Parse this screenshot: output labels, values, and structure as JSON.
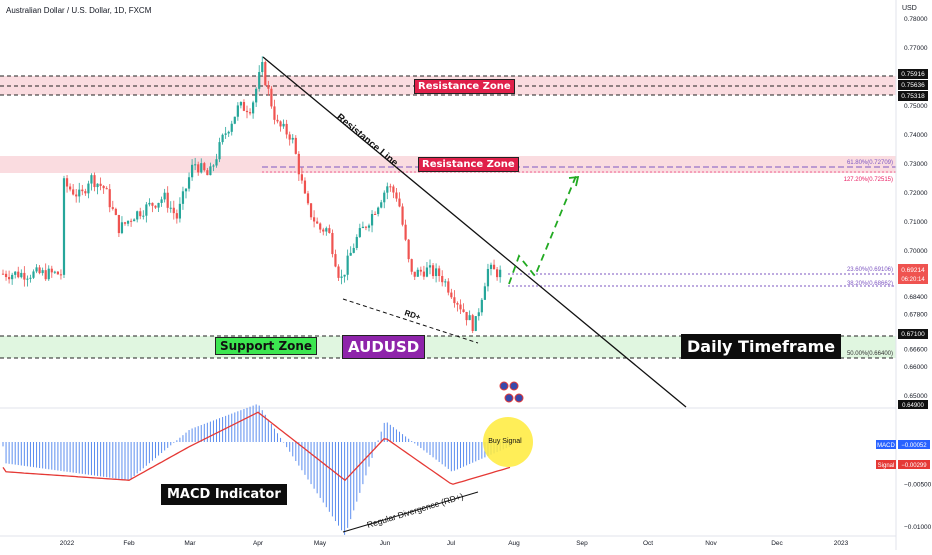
{
  "header": {
    "symbol_title": "Australian Dollar / U.S. Dollar, 1D, FXCM",
    "currency": "USD"
  },
  "annotations": {
    "resistance_zone_top": "Resistance Zone",
    "resistance_zone_mid": "Resistance Zone",
    "resistance_line": "Resistance Line",
    "rd_plus": "RD+",
    "support_zone": "Support Zone",
    "pair": "AUDUSD",
    "timeframe": "Daily Timeframe",
    "macd_indicator": "MACD Indicator",
    "regular_divergence": "Regular Divergence (RD+)",
    "buy_signal": "Buy Signal"
  },
  "fib_labels": {
    "f618": "61.80%(0.72709)",
    "f1272": "127.20%(0.72515)",
    "f236": "23.60%(0.69106)",
    "f382": "38.20%(0.68662)",
    "f50": "50.00%(0.66400)"
  },
  "price_tags": {
    "a": "0.75916",
    "b": "0.75636",
    "c": "0.75318",
    "current": "0.69214",
    "countdown": "06:20:14",
    "support": "0.67100",
    "low": "0.64900"
  },
  "macd_tags": {
    "macd_label": "MACD",
    "macd_value": "−0.00052",
    "signal_label": "Signal",
    "signal_value": "−0.00299"
  },
  "colors": {
    "up": "#26a69a",
    "down": "#ef5350",
    "histogram": "#5b8def",
    "signal": "#e53935",
    "resistance_fill": "#f8d0d6",
    "support_fill": "#daf5da",
    "fib": "#7e57c2",
    "projection": "#22aa22"
  },
  "chart_data": [
    {
      "type": "candlestick",
      "title": "Australian Dollar / U.S. Dollar, 1D, FXCM",
      "y_axis_ticks": [
        "0.78000",
        "0.77000",
        "0.76000",
        "0.75000",
        "0.74000",
        "0.73000",
        "0.72000",
        "0.71000",
        "0.70000",
        "0.69000",
        "0.68400",
        "0.67800",
        "0.66600",
        "0.66000",
        "0.65000"
      ],
      "x_axis_ticks": [
        "2022",
        "Feb",
        "Mar",
        "Apr",
        "May",
        "Jun",
        "Jul",
        "Aug",
        "Sep",
        "Oct",
        "Nov",
        "Dec",
        "2023"
      ],
      "close_path": [
        {
          "date": "2022-01-01",
          "close": 0.7235
        },
        {
          "date": "2022-01-10",
          "close": 0.7185
        },
        {
          "date": "2022-01-14",
          "close": 0.7255
        },
        {
          "date": "2022-01-21",
          "close": 0.7215
        },
        {
          "date": "2022-01-28",
          "close": 0.7075
        },
        {
          "date": "2022-02-04",
          "close": 0.7125
        },
        {
          "date": "2022-02-11",
          "close": 0.7155
        },
        {
          "date": "2022-02-18",
          "close": 0.7185
        },
        {
          "date": "2022-02-24",
          "close": 0.7115
        },
        {
          "date": "2022-03-04",
          "close": 0.7305
        },
        {
          "date": "2022-03-11",
          "close": 0.7255
        },
        {
          "date": "2022-03-18",
          "close": 0.7395
        },
        {
          "date": "2022-03-25",
          "close": 0.7495
        },
        {
          "date": "2022-03-31",
          "close": 0.7495
        },
        {
          "date": "2022-04-05",
          "close": 0.7635
        },
        {
          "date": "2022-04-12",
          "close": 0.7435
        },
        {
          "date": "2022-04-19",
          "close": 0.7395
        },
        {
          "date": "2022-04-26",
          "close": 0.7155
        },
        {
          "date": "2022-05-02",
          "close": 0.7075
        },
        {
          "date": "2022-05-06",
          "close": 0.7075
        },
        {
          "date": "2022-05-12",
          "close": 0.6895
        },
        {
          "date": "2022-05-19",
          "close": 0.7035
        },
        {
          "date": "2022-05-26",
          "close": 0.7115
        },
        {
          "date": "2022-06-03",
          "close": 0.7225
        },
        {
          "date": "2022-06-08",
          "close": 0.7185
        },
        {
          "date": "2022-06-14",
          "close": 0.6915
        },
        {
          "date": "2022-06-21",
          "close": 0.6935
        },
        {
          "date": "2022-06-28",
          "close": 0.6915
        },
        {
          "date": "2022-07-06",
          "close": 0.6825
        },
        {
          "date": "2022-07-14",
          "close": 0.6735
        },
        {
          "date": "2022-07-20",
          "close": 0.6935
        },
        {
          "date": "2022-07-27",
          "close": 0.6921
        }
      ],
      "ylabel": "USD"
    },
    {
      "type": "bar",
      "title": "",
      "categories": [
        "2022",
        "Feb",
        "Mar",
        "Apr",
        "May",
        "Jun",
        "Jul",
        "Aug"
      ],
      "series": [
        {
          "name": "MACD",
          "values": [
            -0.0025,
            -0.0045,
            0.0015,
            0.0045,
            -0.011,
            0.0025,
            -0.0035,
            -0.00052
          ]
        },
        {
          "name": "Signal",
          "values": [
            -0.0035,
            -0.0045,
            -0.0005,
            0.0035,
            -0.0045,
            0.0005,
            -0.005,
            -0.00299
          ]
        }
      ],
      "y_axis_ticks": [
        "−0.00500",
        "−0.01000"
      ],
      "ylabel": ""
    }
  ]
}
